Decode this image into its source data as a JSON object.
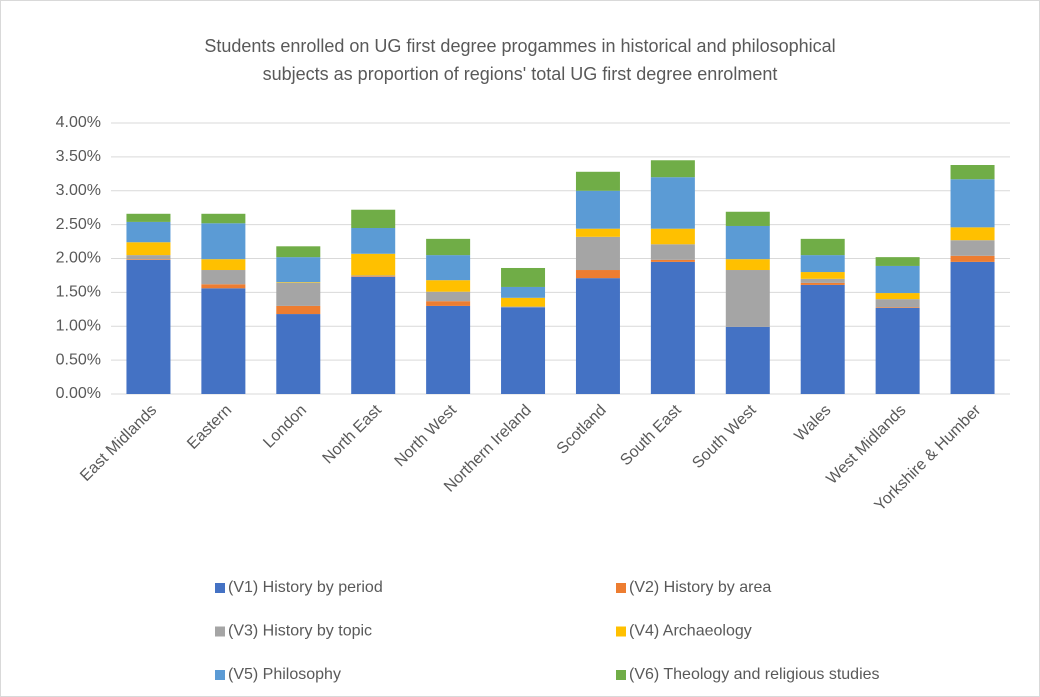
{
  "chart_data": {
    "type": "stacked_bar",
    "title": [
      "Students enrolled on UG first degree progammes in historical and philosophical",
      "subjects as proportion of regions' total UG first degree enrolment"
    ],
    "categories": [
      "East Midlands",
      "Eastern",
      "London",
      "North East",
      "North West",
      "Northern Ireland",
      "Scotland",
      "South East",
      "South West",
      "Wales",
      "West Midlands",
      "Yorkshire & Humber"
    ],
    "series": [
      {
        "name": "(V1) History by period",
        "color": "#4472c4",
        "values": [
          1.98,
          1.56,
          1.18,
          1.73,
          1.3,
          1.28,
          1.71,
          1.95,
          0.99,
          1.61,
          1.27,
          1.95
        ]
      },
      {
        "name": "(V2) History by area",
        "color": "#ed7d31",
        "values": [
          0.01,
          0.06,
          0.12,
          0.01,
          0.07,
          0.0,
          0.12,
          0.03,
          0.0,
          0.03,
          0.01,
          0.09
        ]
      },
      {
        "name": "(V3) History by topic",
        "color": "#a5a5a5",
        "values": [
          0.06,
          0.21,
          0.34,
          0.01,
          0.14,
          0.01,
          0.49,
          0.23,
          0.84,
          0.06,
          0.12,
          0.23
        ]
      },
      {
        "name": "(V4) Archaeology",
        "color": "#ffc000",
        "values": [
          0.19,
          0.16,
          0.01,
          0.32,
          0.17,
          0.13,
          0.12,
          0.23,
          0.16,
          0.1,
          0.09,
          0.19
        ]
      },
      {
        "name": "(V5) Philosophy",
        "color": "#5b9bd5",
        "values": [
          0.3,
          0.53,
          0.37,
          0.38,
          0.37,
          0.16,
          0.56,
          0.76,
          0.49,
          0.25,
          0.4,
          0.71
        ]
      },
      {
        "name": "(V6) Theology and religious studies",
        "color": "#70ad47",
        "values": [
          0.12,
          0.14,
          0.16,
          0.27,
          0.24,
          0.28,
          0.28,
          0.25,
          0.21,
          0.24,
          0.13,
          0.21
        ]
      }
    ],
    "ylim": [
      0,
      4
    ],
    "yticks": [
      {
        "value": 0,
        "label": "0.00%"
      },
      {
        "value": 0.5,
        "label": "0.50%"
      },
      {
        "value": 1,
        "label": "1.00%"
      },
      {
        "value": 1.5,
        "label": "1.50%"
      },
      {
        "value": 2,
        "label": "2.00%"
      },
      {
        "value": 2.5,
        "label": "2.50%"
      },
      {
        "value": 3,
        "label": "3.00%"
      },
      {
        "value": 3.5,
        "label": "3.50%"
      },
      {
        "value": 4,
        "label": "4.00%"
      }
    ],
    "grid": true,
    "legend": "bottom"
  }
}
